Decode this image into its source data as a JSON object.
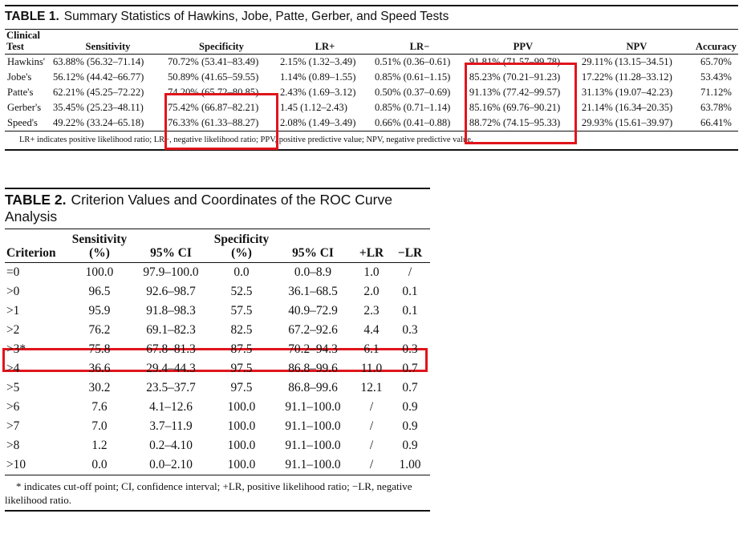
{
  "table1": {
    "label": "TABLE 1.",
    "title": "Summary Statistics of Hawkins, Jobe, Patte, Gerber, and Speed Tests",
    "header": {
      "test_line1": "Clinical",
      "test_line2": "Test",
      "columns": [
        "Sensitivity",
        "Specificity",
        "LR+",
        "LR−",
        "PPV",
        "NPV",
        "Accuracy"
      ]
    },
    "rows": [
      {
        "test": "Hawkins'",
        "sensitivity": "63.88% (56.32–71.14)",
        "specificity": "70.72% (53.41–83.49)",
        "lr_pos": "2.15% (1.32–3.49)",
        "lr_neg": "0.51% (0.36–0.61)",
        "ppv": "91.81% (71.57–99.78)",
        "npv": "29.11% (13.15–34.51)",
        "accuracy": "65.70%"
      },
      {
        "test": "Jobe's",
        "sensitivity": "56.12% (44.42–66.77)",
        "specificity": "50.89% (41.65–59.55)",
        "lr_pos": "1.14% (0.89–1.55)",
        "lr_neg": "0.85% (0.61–1.15)",
        "ppv": "85.23% (70.21–91.23)",
        "npv": "17.22% (11.28–33.12)",
        "accuracy": "53.43%"
      },
      {
        "test": "Patte's",
        "sensitivity": "62.21% (45.25–72.22)",
        "specificity": "74.20% (65.72–80.85)",
        "lr_pos": "2.43% (1.69–3.12)",
        "lr_neg": "0.50% (0.37–0.69)",
        "ppv": "91.13% (77.42–99.57)",
        "npv": "31.13% (19.07–42.23)",
        "accuracy": "71.12%"
      },
      {
        "test": "Gerber's",
        "sensitivity": "35.45% (25.23–48.11)",
        "specificity": "75.42% (66.87–82.21)",
        "lr_pos": "1.45 (1.12–2.43)",
        "lr_neg": "0.85% (0.71–1.14)",
        "ppv": "85.16% (69.76–90.21)",
        "npv": "21.14% (16.34–20.35)",
        "accuracy": "63.78%"
      },
      {
        "test": "Speed's",
        "sensitivity": "49.22% (33.24–65.18)",
        "specificity": "76.33% (61.33–88.27)",
        "lr_pos": "2.08% (1.49–3.49)",
        "lr_neg": "0.66% (0.41–0.88)",
        "ppv": "88.72% (74.15–95.33)",
        "npv": "29.93% (15.61–39.97)",
        "accuracy": "66.41%"
      }
    ],
    "footnote": "LR+ indicates positive likelihood ratio; LR−, negative likelihood ratio; PPV, positive predictive value; NPV, negative predictive value."
  },
  "table2": {
    "label": "TABLE 2.",
    "title": "Criterion Values and Coordinates of the ROC Curve Analysis",
    "header": {
      "criterion": "Criterion",
      "sens_line1": "Sensitivity",
      "sens_line2": "(%)",
      "ci1": "95% CI",
      "spec_line1": "Specificity",
      "spec_line2": "(%)",
      "ci2": "95% CI",
      "lr_pos": "+LR",
      "lr_neg": "−LR"
    },
    "rows": [
      {
        "criterion": "=0",
        "sensitivity": "100.0",
        "ci1": "97.9–100.0",
        "specificity": "0.0",
        "ci2": "0.0–8.9",
        "lr_pos": "1.0",
        "lr_neg": "/"
      },
      {
        "criterion": ">0",
        "sensitivity": "96.5",
        "ci1": "92.6–98.7",
        "specificity": "52.5",
        "ci2": "36.1–68.5",
        "lr_pos": "2.0",
        "lr_neg": "0.1"
      },
      {
        "criterion": ">1",
        "sensitivity": "95.9",
        "ci1": "91.8–98.3",
        "specificity": "57.5",
        "ci2": "40.9–72.9",
        "lr_pos": "2.3",
        "lr_neg": "0.1"
      },
      {
        "criterion": ">2",
        "sensitivity": "76.2",
        "ci1": "69.1–82.3",
        "specificity": "82.5",
        "ci2": "67.2–92.6",
        "lr_pos": "4.4",
        "lr_neg": "0.3"
      },
      {
        "criterion": ">3*",
        "sensitivity": "75.8",
        "ci1": "67.8–81.3",
        "specificity": "87.5",
        "ci2": "70.2–94.3",
        "lr_pos": "6.1",
        "lr_neg": "0.3"
      },
      {
        "criterion": ">4",
        "sensitivity": "36.6",
        "ci1": "29.4–44.3",
        "specificity": "97.5",
        "ci2": "86.8–99.6",
        "lr_pos": "11.0",
        "lr_neg": "0.7"
      },
      {
        "criterion": ">5",
        "sensitivity": "30.2",
        "ci1": "23.5–37.7",
        "specificity": "97.5",
        "ci2": "86.8–99.6",
        "lr_pos": "12.1",
        "lr_neg": "0.7"
      },
      {
        "criterion": ">6",
        "sensitivity": "7.6",
        "ci1": "4.1–12.6",
        "specificity": "100.0",
        "ci2": "91.1–100.0",
        "lr_pos": "/",
        "lr_neg": "0.9"
      },
      {
        "criterion": ">7",
        "sensitivity": "7.0",
        "ci1": "3.7–11.9",
        "specificity": "100.0",
        "ci2": "91.1–100.0",
        "lr_pos": "/",
        "lr_neg": "0.9"
      },
      {
        "criterion": ">8",
        "sensitivity": "1.2",
        "ci1": "0.2–4.10",
        "specificity": "100.0",
        "ci2": "91.1–100.0",
        "lr_pos": "/",
        "lr_neg": "0.9"
      },
      {
        "criterion": ">10",
        "sensitivity": "0.0",
        "ci1": "0.0–2.10",
        "specificity": "100.0",
        "ci2": "91.1–100.0",
        "lr_pos": "/",
        "lr_neg": "1.00"
      }
    ],
    "footnote": "* indicates cut-off point; CI, confidence interval; +LR, positive likelihood ratio; −LR, negative likelihood ratio."
  },
  "highlight_color": "#e0151c"
}
